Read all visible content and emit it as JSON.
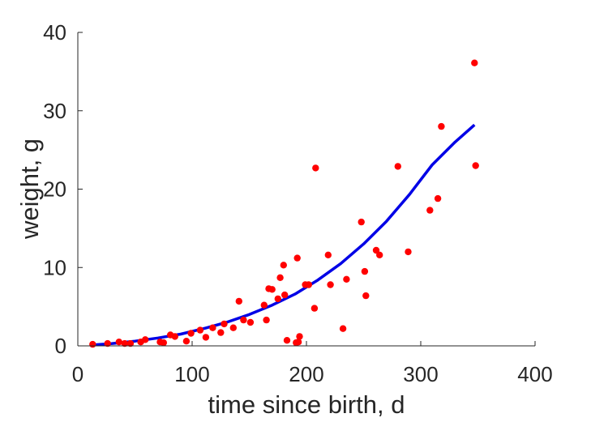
{
  "chart_data": {
    "type": "scatter",
    "xlabel": "time since birth, d",
    "ylabel": "weight, g",
    "xlim": [
      0,
      400
    ],
    "ylim": [
      0,
      40
    ],
    "xticks": [
      "0",
      "100",
      "200",
      "300",
      "400"
    ],
    "yticks": [
      "0",
      "10",
      "20",
      "30",
      "40"
    ],
    "grid": false,
    "colors": {
      "points": "#ff0000",
      "curve": "#0000e6",
      "axes": "#262626"
    },
    "series": [
      {
        "kind": "points",
        "x": [
          13,
          26,
          36,
          41,
          46,
          55,
          59,
          72,
          75,
          81,
          85,
          95,
          99,
          107,
          112,
          118,
          125,
          128,
          136,
          141,
          145,
          151,
          163,
          165,
          167,
          170,
          175,
          177,
          180,
          181,
          183,
          191,
          192,
          193,
          194,
          199,
          202,
          207,
          208,
          219,
          221,
          232,
          235,
          248,
          251,
          252,
          261,
          264,
          289,
          280,
          308,
          315,
          318,
          347,
          348
        ],
        "y": [
          0.2,
          0.3,
          0.5,
          0.3,
          0.3,
          0.5,
          0.8,
          0.5,
          0.4,
          1.4,
          1.2,
          0.6,
          1.6,
          2.0,
          1.1,
          2.3,
          1.7,
          2.8,
          2.3,
          5.7,
          3.3,
          3.0,
          5.2,
          3.3,
          7.3,
          7.2,
          6.0,
          8.7,
          10.3,
          6.5,
          0.7,
          0.4,
          11.2,
          0.5,
          1.2,
          7.8,
          7.8,
          4.8,
          22.7,
          11.6,
          7.8,
          2.2,
          8.5,
          15.8,
          9.5,
          6.4,
          12.2,
          11.6,
          12.0,
          22.9,
          17.3,
          18.8,
          28.0,
          36.1,
          23.0
        ]
      },
      {
        "kind": "line",
        "x": [
          12,
          30,
          50,
          70,
          90,
          110,
          130,
          150,
          170,
          190,
          210,
          230,
          250,
          270,
          290,
          310,
          330,
          347
        ],
        "y": [
          0.1,
          0.3,
          0.6,
          1.0,
          1.5,
          2.2,
          3.0,
          4.0,
          5.2,
          6.6,
          8.4,
          10.5,
          13.0,
          15.9,
          19.3,
          23.1,
          26.0,
          28.2
        ]
      }
    ]
  }
}
